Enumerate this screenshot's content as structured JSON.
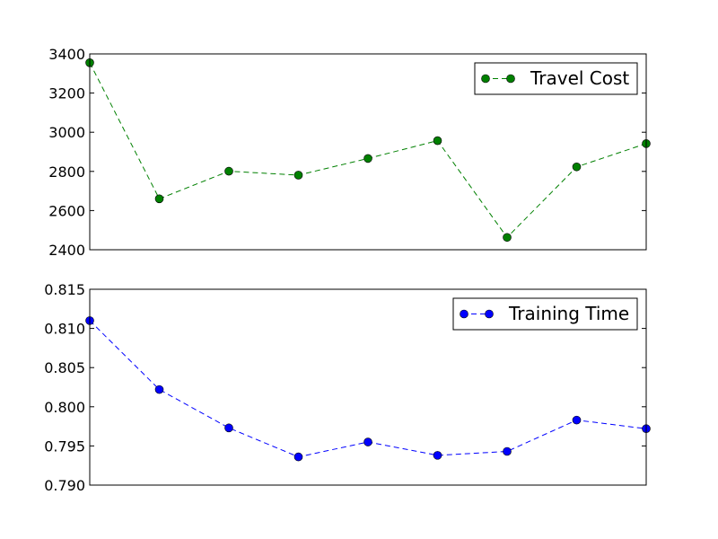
{
  "chart_data": [
    {
      "type": "line",
      "x": [
        0,
        1,
        2,
        3,
        4,
        5,
        6,
        7,
        8
      ],
      "series": [
        {
          "name": "Travel Cost",
          "color": "#008000",
          "line_style": "dashed",
          "marker": "circle",
          "values": [
            3355,
            2660,
            2801,
            2781,
            2866,
            2957,
            2463,
            2823,
            2942
          ]
        }
      ],
      "ylim": [
        2400,
        3400
      ],
      "yticks": [
        "2400",
        "2600",
        "2800",
        "3000",
        "3200",
        "3400"
      ],
      "xticks_visible": false,
      "grid": false,
      "legend_position": "top-right"
    },
    {
      "type": "line",
      "x": [
        0,
        1,
        2,
        3,
        4,
        5,
        6,
        7,
        8
      ],
      "series": [
        {
          "name": "Training Time",
          "color": "#0000ff",
          "line_style": "dashed",
          "marker": "circle",
          "values": [
            0.811,
            0.8022,
            0.7973,
            0.7936,
            0.7955,
            0.7938,
            0.7943,
            0.7983,
            0.7972
          ]
        }
      ],
      "ylim": [
        0.79,
        0.815
      ],
      "yticks": [
        "0.790",
        "0.795",
        "0.800",
        "0.805",
        "0.810",
        "0.815"
      ],
      "xticks_visible": false,
      "grid": false,
      "legend_position": "top-right"
    }
  ]
}
